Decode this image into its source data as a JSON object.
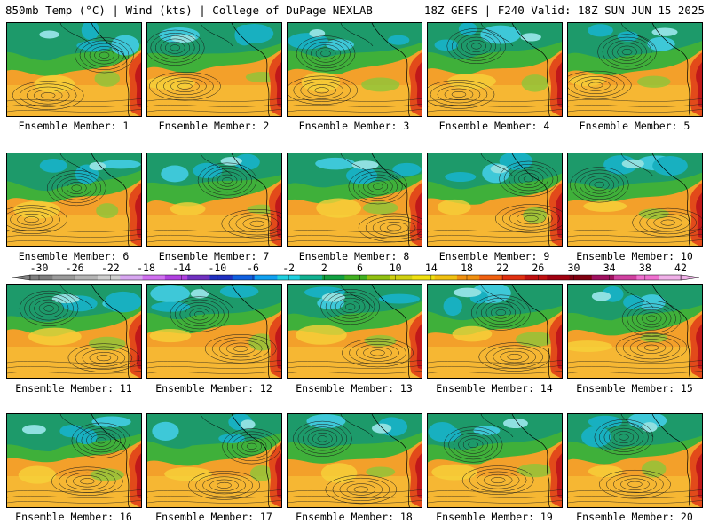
{
  "header": {
    "left": "850mb Temp (°C) | Wind (kts) | College of DuPage NEXLAB",
    "right": "18Z GEFS | F240 Valid: 18Z SUN JUN 15 2025"
  },
  "panels": [
    {
      "label": "Ensemble Member: 1"
    },
    {
      "label": "Ensemble Member: 2"
    },
    {
      "label": "Ensemble Member: 3"
    },
    {
      "label": "Ensemble Member: 4"
    },
    {
      "label": "Ensemble Member: 5"
    },
    {
      "label": "Ensemble Member: 6"
    },
    {
      "label": "Ensemble Member: 7"
    },
    {
      "label": "Ensemble Member: 8"
    },
    {
      "label": "Ensemble Member: 9"
    },
    {
      "label": "Ensemble Member: 10"
    },
    {
      "label": "Ensemble Member: 11"
    },
    {
      "label": "Ensemble Member: 12"
    },
    {
      "label": "Ensemble Member: 13"
    },
    {
      "label": "Ensemble Member: 14"
    },
    {
      "label": "Ensemble Member: 15"
    },
    {
      "label": "Ensemble Member: 16"
    },
    {
      "label": "Ensemble Member: 17"
    },
    {
      "label": "Ensemble Member: 18"
    },
    {
      "label": "Ensemble Member: 19"
    },
    {
      "label": "Ensemble Member: 20"
    }
  ],
  "colorbar": {
    "tick_labels": [
      "-30",
      "-26",
      "-22",
      "-18",
      "-14",
      "-10",
      "-6",
      "-2",
      "2",
      "6",
      "10",
      "14",
      "18",
      "22",
      "26",
      "30",
      "34",
      "38",
      "42"
    ],
    "colors": [
      "#7f7f7f",
      "#9a9a9a",
      "#b4b4b4",
      "#cfcfcf",
      "#d7a6f0",
      "#d070f0",
      "#b040e0",
      "#7030c0",
      "#2030c0",
      "#1060e0",
      "#10a0f0",
      "#20d0e0",
      "#10b090",
      "#10a040",
      "#40b020",
      "#90c010",
      "#d0d010",
      "#f0e010",
      "#f0c010",
      "#f09010",
      "#f06010",
      "#e03010",
      "#c01010",
      "#a00010",
      "#800010",
      "#a01060",
      "#d040a0",
      "#f070d0",
      "#f0b0e8"
    ]
  }
}
